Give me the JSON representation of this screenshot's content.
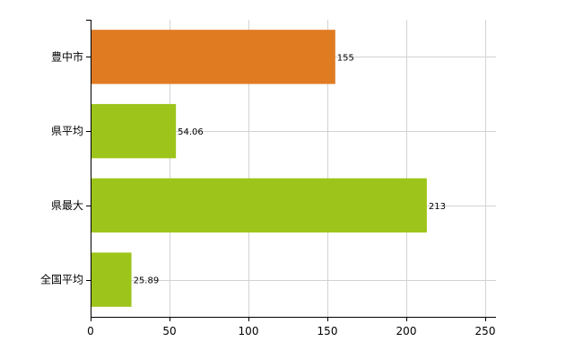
{
  "chart_data": {
    "type": "bar",
    "orientation": "horizontal",
    "categories": [
      "豊中市",
      "県平均",
      "県最大",
      "全国平均"
    ],
    "values": [
      155,
      54.06,
      213,
      25.89
    ],
    "value_labels": [
      "155",
      "54.06",
      "213",
      "25.89"
    ],
    "bar_colors": [
      "#E07B22",
      "#9DC41A",
      "#9DC41A",
      "#9DC41A"
    ],
    "title": "",
    "xlabel": "",
    "ylabel": "",
    "xlim": [
      0,
      250
    ],
    "x_ticks": [
      0,
      50,
      100,
      150,
      200,
      250
    ],
    "x_tick_labels": [
      "0",
      "50",
      "100",
      "150",
      "200",
      "250"
    ],
    "grid": true,
    "legend": false
  }
}
